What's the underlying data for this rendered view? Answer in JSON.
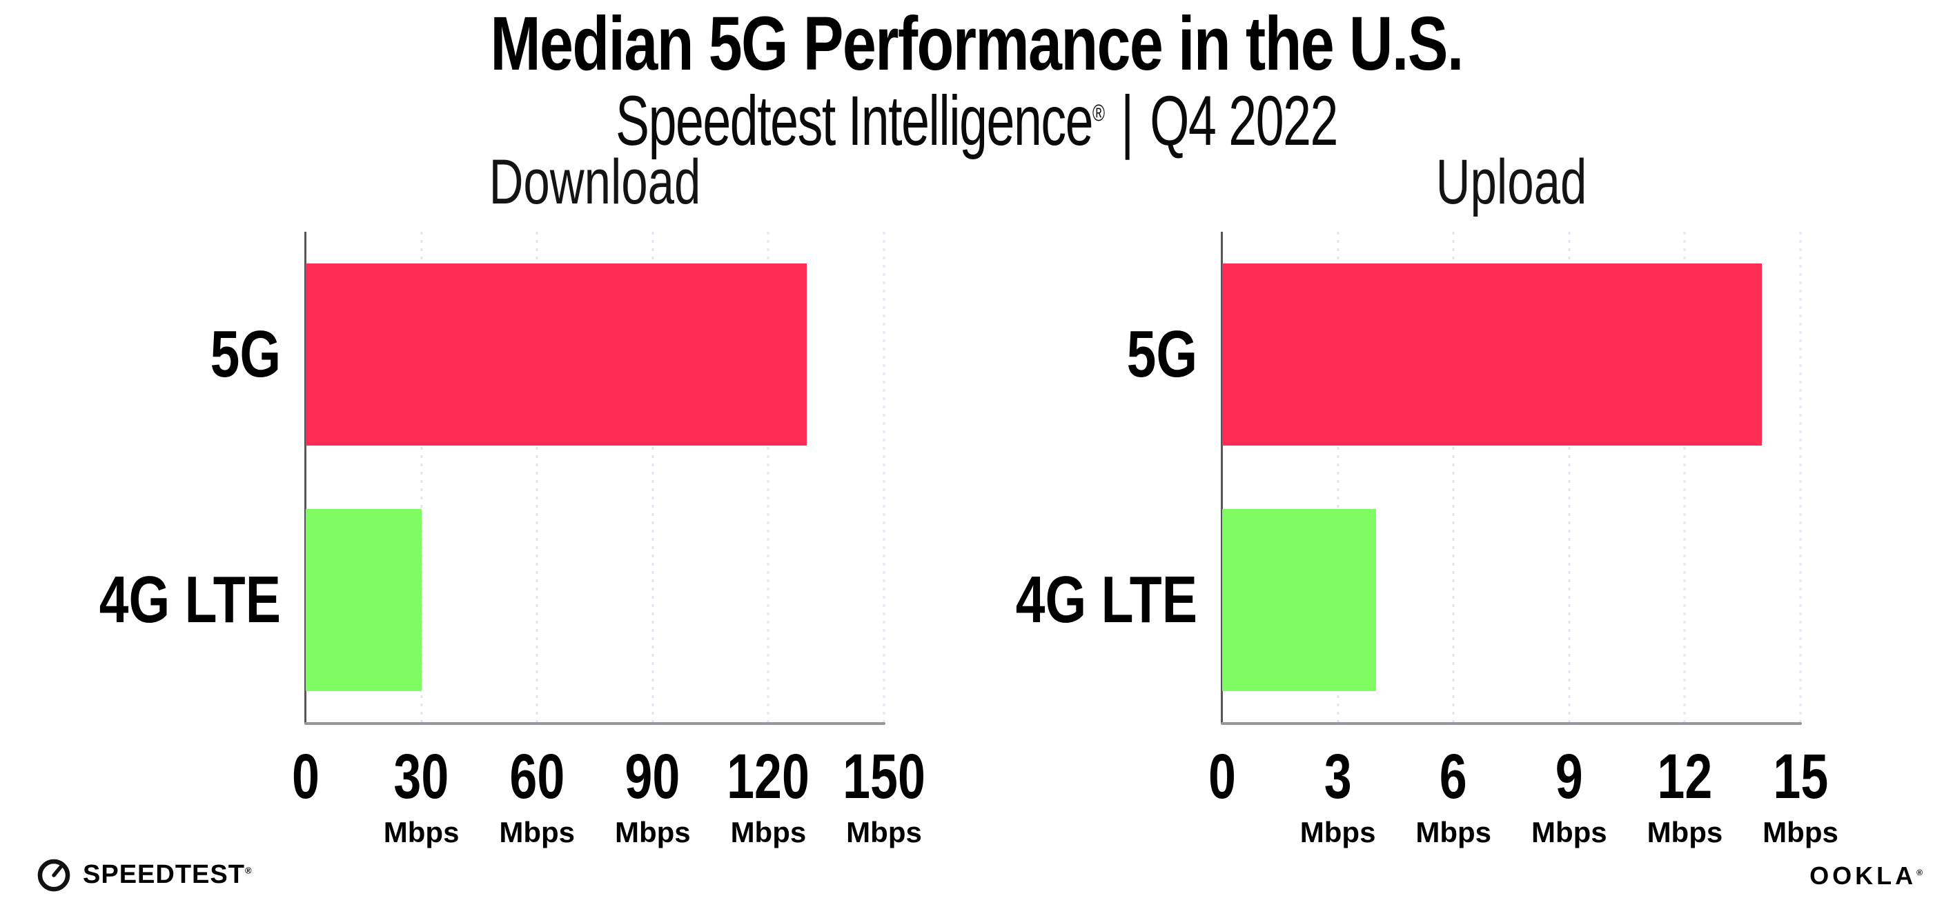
{
  "page": {
    "title": "Median 5G Performance in the U.S.",
    "subtitle_brand": "Speedtest Intelligence",
    "subtitle_reg": "®",
    "subtitle_sep": "|",
    "subtitle_period": "Q4 2022"
  },
  "footer": {
    "speedtest_wordmark": "SPEEDTEST",
    "speedtest_mark": "®",
    "ookla_wordmark": "OOKLA",
    "ookla_mark": "®",
    "gauge_icon": "speedtest-gauge-icon"
  },
  "colors": {
    "bar_5g": "#ff2d55",
    "bar_4g": "#7ffc62",
    "y_axis": "#55555c",
    "x_axis": "#96969e",
    "grid": "#e3e5f1",
    "text": "#000000",
    "panel_title": "#141414"
  },
  "chart_data": [
    {
      "type": "bar",
      "orientation": "horizontal",
      "title": "Download",
      "categories": [
        "5G",
        "4G LTE"
      ],
      "values": [
        130,
        30
      ],
      "unit": "Mbps",
      "xlim": [
        0,
        150
      ],
      "xticks": [
        0,
        30,
        60,
        90,
        120,
        150
      ],
      "grid": "dotted-vertical",
      "legend": "none",
      "bar_colors": [
        "#ff2d55",
        "#7ffc62"
      ]
    },
    {
      "type": "bar",
      "orientation": "horizontal",
      "title": "Upload",
      "categories": [
        "5G",
        "4G LTE"
      ],
      "values": [
        14,
        4
      ],
      "unit": "Mbps",
      "xlim": [
        0,
        15
      ],
      "xticks": [
        0,
        3,
        6,
        9,
        12,
        15
      ],
      "grid": "dotted-vertical",
      "legend": "none",
      "bar_colors": [
        "#ff2d55",
        "#7ffc62"
      ]
    }
  ]
}
